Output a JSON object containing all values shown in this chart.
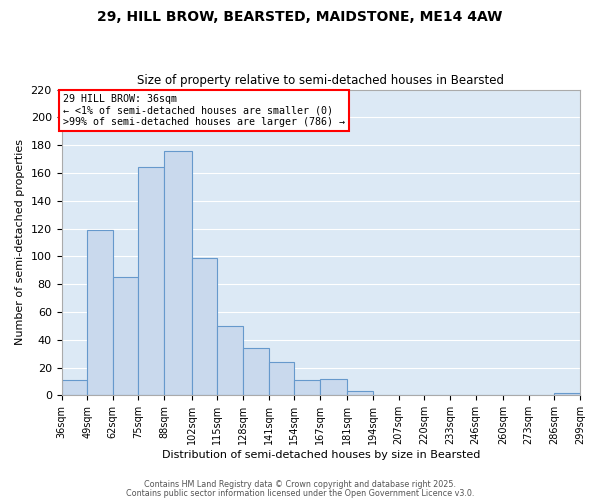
{
  "title": "29, HILL BROW, BEARSTED, MAIDSTONE, ME14 4AW",
  "subtitle": "Size of property relative to semi-detached houses in Bearsted",
  "xlabel": "Distribution of semi-detached houses by size in Bearsted",
  "ylabel": "Number of semi-detached properties",
  "bin_edges": [
    36,
    49,
    62,
    75,
    88,
    102,
    115,
    128,
    141,
    154,
    167,
    181,
    194,
    207,
    220,
    233,
    246,
    260,
    273,
    286,
    299
  ],
  "counts": [
    11,
    119,
    85,
    164,
    176,
    99,
    50,
    34,
    24,
    11,
    12,
    3,
    0,
    0,
    0,
    0,
    0,
    0,
    0,
    2
  ],
  "bar_facecolor": "#c9d9ed",
  "bar_edgecolor": "#6699cc",
  "background_color": "#dce9f5",
  "grid_color": "#ffffff",
  "annotation_text_line1": "29 HILL BROW: 36sqm",
  "annotation_text_line2": "← <1% of semi-detached houses are smaller (0)",
  "annotation_text_line3": ">99% of semi-detached houses are larger (786) →",
  "ylim": [
    0,
    220
  ],
  "yticks": [
    0,
    20,
    40,
    60,
    80,
    100,
    120,
    140,
    160,
    180,
    200,
    220
  ],
  "tick_labels": [
    "36sqm",
    "49sqm",
    "62sqm",
    "75sqm",
    "88sqm",
    "102sqm",
    "115sqm",
    "128sqm",
    "141sqm",
    "154sqm",
    "167sqm",
    "181sqm",
    "194sqm",
    "207sqm",
    "220sqm",
    "233sqm",
    "246sqm",
    "260sqm",
    "273sqm",
    "286sqm",
    "299sqm"
  ],
  "footer_line1": "Contains HM Land Registry data © Crown copyright and database right 2025.",
  "footer_line2": "Contains public sector information licensed under the Open Government Licence v3.0."
}
